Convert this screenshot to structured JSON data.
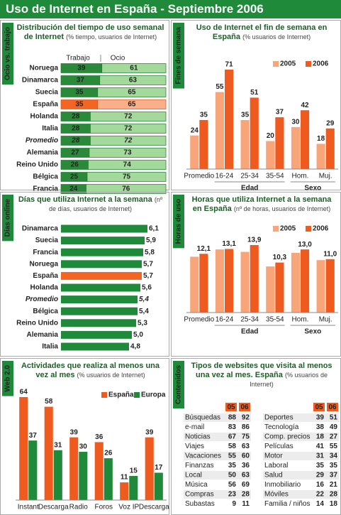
{
  "title": "Uso de Internet en España - Septiembre 2006",
  "chart_data": [
    {
      "type": "bar",
      "horizontal": true,
      "stacked": true,
      "section": "Ocio vs. trabajo",
      "title": "Distribución del tiempo de uso semanal de Internet",
      "subtitle": "(% tiempo, usuarios de Internet)",
      "categories": [
        "Noruega",
        "Dinamarca",
        "Suecia",
        "España",
        "Holanda",
        "Italia",
        "Promedio",
        "Alemania",
        "Reino Unido",
        "Bélgica",
        "Francia"
      ],
      "series": [
        {
          "name": "Trabajo",
          "color": "#2a8a3a",
          "highlight_color": "#f26522",
          "values": [
            39,
            37,
            35,
            35,
            28,
            28,
            28,
            27,
            26,
            25,
            24
          ]
        },
        {
          "name": "Ocio",
          "color": "#a3da9c",
          "highlight_color": "#f9b08a",
          "values": [
            61,
            63,
            65,
            65,
            72,
            72,
            72,
            73,
            74,
            75,
            76
          ]
        }
      ],
      "highlight": 3,
      "italic": 6
    },
    {
      "type": "bar",
      "section": "Fines de semana",
      "title": "Uso de Internet el fin de semana en España",
      "subtitle": "(% usuarios de Internet)",
      "categories": [
        "Promedio",
        "16-24",
        "25-34",
        "35-54",
        "Hom.",
        "Muj."
      ],
      "groups": [
        {
          "label": "Edad",
          "start": 1,
          "end": 3
        },
        {
          "label": "Sexo",
          "start": 4,
          "end": 5
        }
      ],
      "series": [
        {
          "name": "2005",
          "color": "#f9a57a",
          "values": [
            24,
            55,
            35,
            20,
            30,
            18
          ]
        },
        {
          "name": "2006",
          "color": "#ef5a1e",
          "values": [
            35,
            71,
            51,
            37,
            42,
            29
          ]
        }
      ]
    },
    {
      "type": "bar",
      "horizontal": true,
      "section": "Días online",
      "title": "Días que utiliza Internet a la semana",
      "subtitle": "(nº de días, usuarios de Internet)",
      "categories": [
        "Dinamarca",
        "Suecia",
        "Francia",
        "Noruega",
        "España",
        "Holanda",
        "Promedio",
        "Bélgica",
        "Reino Unido",
        "Alemania",
        "Italia"
      ],
      "values": [
        6.1,
        5.9,
        5.8,
        5.7,
        5.7,
        5.6,
        5.4,
        5.4,
        5.3,
        5.0,
        4.8
      ],
      "value_labels": [
        "6,1",
        "5,9",
        "5,8",
        "5,7",
        "5,7",
        "5,6",
        "5,4",
        "5,4",
        "5,3",
        "5,0",
        "4,8"
      ],
      "color": "#1f8a3a",
      "highlight": 4,
      "highlight_color": "#f26522",
      "italic": 6
    },
    {
      "type": "bar",
      "section": "Horas de uso",
      "title": "Horas que utiliza Internet a la semana en España",
      "subtitle": "(nº de horas, usuarios de Internet)",
      "categories": [
        "Promedio",
        "16-24",
        "25-34",
        "35-54",
        "Hom.",
        "Muj."
      ],
      "groups": [
        {
          "label": "Edad",
          "start": 1,
          "end": 3
        },
        {
          "label": "Sexo",
          "start": 4,
          "end": 5
        }
      ],
      "series": [
        {
          "name": "2005",
          "color": "#f9a57a",
          "show_values": false,
          "values": [
            11.5,
            13.0,
            12.5,
            9.5,
            12.3,
            10.8
          ]
        },
        {
          "name": "2006",
          "color": "#ef5a1e",
          "values": [
            12.1,
            13.1,
            13.9,
            10.3,
            13.0,
            11.0
          ],
          "value_labels": [
            "12,1",
            "13,1",
            "13,9",
            "10,3",
            "13,0",
            "11,0"
          ]
        }
      ]
    },
    {
      "type": "bar",
      "section": "Web 2.0",
      "title": "Actividades que realiza al menos una vez al mes",
      "subtitle": "(% usuarios de Internet)",
      "categories": [
        "Instant",
        "Descarga",
        "Radio",
        "Foros",
        "Voz IP",
        "Descarga"
      ],
      "series": [
        {
          "name": "España",
          "color": "#ef5a1e",
          "values": [
            64,
            58,
            39,
            36,
            11,
            39
          ]
        },
        {
          "name": "Europa",
          "color": "#1f8a3a",
          "values": [
            37,
            31,
            30,
            26,
            15,
            17
          ]
        }
      ]
    }
  ],
  "table": {
    "section": "Contenidos",
    "title": "Tipos de websites que visita al menos una vez al mes. España",
    "subtitle": "(% usuarios de Internet)",
    "columns": [
      "05",
      "06"
    ],
    "left": [
      [
        "Búsquedas",
        88,
        92
      ],
      [
        "e-mail",
        83,
        86
      ],
      [
        "Noticias",
        67,
        75
      ],
      [
        "Viajes",
        58,
        63
      ],
      [
        "Vacaciones",
        55,
        60
      ],
      [
        "Finanzas",
        35,
        36
      ],
      [
        "Local",
        50,
        63
      ],
      [
        "Música",
        56,
        69
      ],
      [
        "Compras",
        23,
        28
      ],
      [
        "Subastas",
        9,
        11
      ]
    ],
    "right": [
      [
        "Deportes",
        39,
        51
      ],
      [
        "Tecnología",
        38,
        49
      ],
      [
        "Comp. precios",
        18,
        27
      ],
      [
        "Películas",
        41,
        55
      ],
      [
        "Motor",
        31,
        34
      ],
      [
        "Laboral",
        35,
        35
      ],
      [
        "Salud",
        29,
        37
      ],
      [
        "Inmobiliario",
        16,
        21
      ],
      [
        "Móviles",
        22,
        28
      ],
      [
        "Familia / niños",
        14,
        18
      ]
    ]
  }
}
